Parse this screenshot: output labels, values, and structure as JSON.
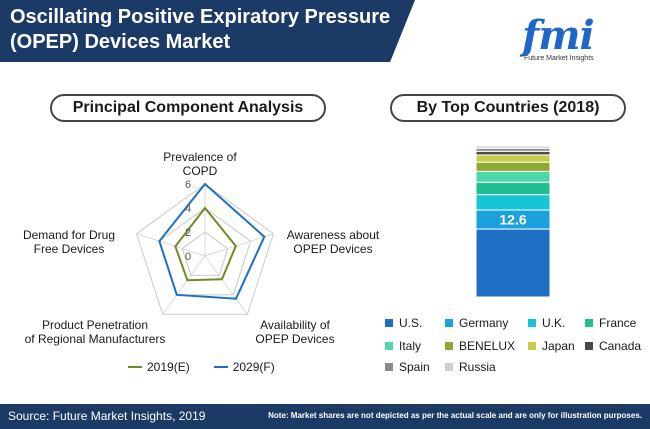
{
  "header": {
    "title_line1": "Oscillating Positive Expiratory Pressure",
    "title_line2": "(OPEP) Devices Market"
  },
  "logo": {
    "letters": "fmi",
    "tagline": "Future Market Insights",
    "dot_colors": [
      "#4caf50",
      "#f5a623",
      "#8e44ad",
      "#e53935"
    ]
  },
  "chart_data": [
    {
      "type": "radar",
      "title": "Principal Component Analysis",
      "axes": [
        "Prevalence of COPD",
        "Awareness about OPEP Devices",
        "Availability of OPEP Devices",
        "Product Penetration of Regional Manufacturers",
        "Demand for Drug Free Devices"
      ],
      "axis_label_lines": [
        [
          "Prevalence of",
          "COPD"
        ],
        [
          "Awareness about",
          "OPEP Devices"
        ],
        [
          "Availability of",
          "OPEP Devices"
        ],
        [
          "Product Penetration",
          "of Regional Manufacturers"
        ],
        [
          "Demand for Drug",
          "Free Devices"
        ]
      ],
      "ticks": [
        "0",
        "2",
        "4",
        "6"
      ],
      "range": [
        0,
        6
      ],
      "series": [
        {
          "name": "2019(E)",
          "color": "#6b8e23",
          "values": [
            4.0,
            2.7,
            2.4,
            2.5,
            2.6
          ]
        },
        {
          "name": "2029(F)",
          "color": "#1f6fc5",
          "values": [
            6.0,
            5.2,
            4.4,
            4.0,
            4.0
          ]
        }
      ]
    },
    {
      "type": "bar",
      "subtype": "stacked-single-column",
      "title": "By Top Countries (2018)",
      "categories": [
        "U.S.",
        "Germany",
        "U.K.",
        "France",
        "Italy",
        "BENELUX",
        "Japan",
        "Canada",
        "Spain",
        "Russia"
      ],
      "colors": [
        "#1f6fc5",
        "#1ba1dc",
        "#16c5d6",
        "#1fbf8f",
        "#4fd6a8",
        "#8fa832",
        "#c5cc4a",
        "#4a4a4a",
        "#8a8a8a",
        "#cfcfcf"
      ],
      "values": [
        45.0,
        12.6,
        10.2,
        8.2,
        7.2,
        6.1,
        4.8,
        2.4,
        2.0,
        1.5
      ],
      "data_labels": [
        "",
        "12.6",
        "",
        "",
        "",
        "",
        "",
        "",
        "",
        ""
      ]
    }
  ],
  "footer": {
    "source": "Source: Future Market Insights, 2019",
    "note": "Note: Market shares are not depicted as per the actual scale and are only for illustration purposes."
  }
}
